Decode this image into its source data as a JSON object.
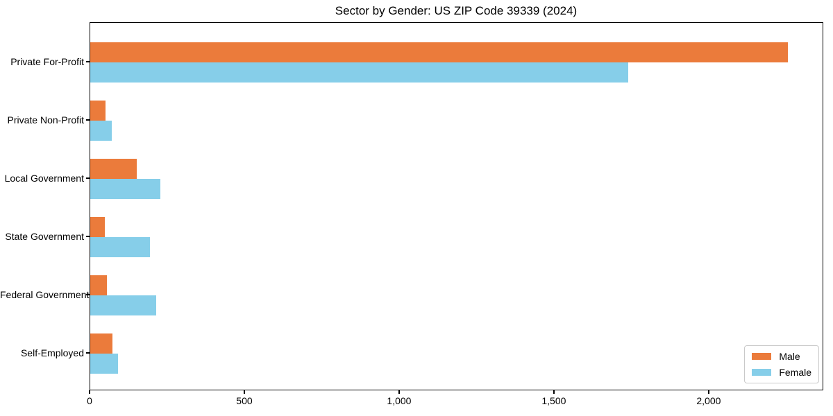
{
  "chart_data": {
    "type": "bar",
    "orientation": "horizontal",
    "title": "Sector by Gender: US ZIP Code 39339 (2024)",
    "categories": [
      "Private For-Profit",
      "Private Non-Profit",
      "Local Government",
      "State Government",
      "Federal Government",
      "Self-Employed"
    ],
    "series": [
      {
        "name": "Male",
        "color": "#EB7B3B",
        "values": [
          2255,
          49,
          150,
          47,
          54,
          72
        ]
      },
      {
        "name": "Female",
        "color": "#86CEE9",
        "values": [
          1740,
          70,
          226,
          193,
          213,
          90
        ]
      }
    ],
    "xlabel": "",
    "ylabel": "",
    "xlim": [
      0,
      2368
    ],
    "xticks": [
      {
        "value": 0,
        "label": "0"
      },
      {
        "value": 500,
        "label": "500"
      },
      {
        "value": 1000,
        "label": "1,000"
      },
      {
        "value": 1500,
        "label": "1,500"
      },
      {
        "value": 2000,
        "label": "2,000"
      }
    ],
    "grid": false,
    "legend": {
      "position": "lower right"
    }
  }
}
